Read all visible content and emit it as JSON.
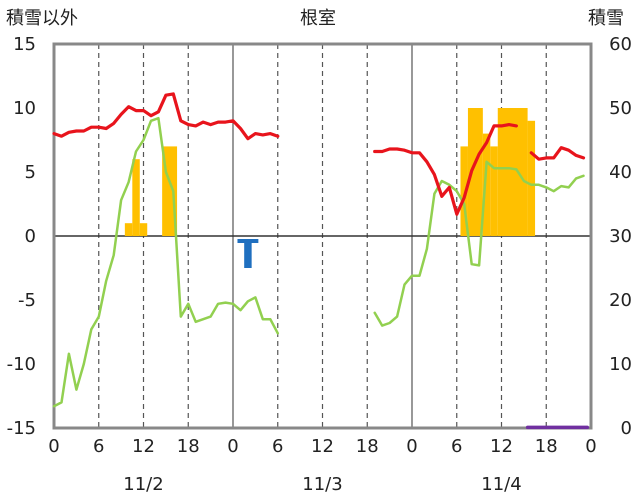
{
  "chart_data": {
    "type": "line",
    "title": "根室",
    "left_axis": {
      "label": "積雪以外",
      "ylim": [
        -15,
        15
      ],
      "ticks": [
        "15",
        "10",
        "5",
        "0",
        "-5",
        "-10",
        "-15"
      ]
    },
    "right_axis": {
      "label": "積雪",
      "ylim": [
        0,
        60
      ],
      "ticks": [
        "60",
        "50",
        "40",
        "30",
        "20",
        "10",
        "0"
      ]
    },
    "x_axis": {
      "hours_range": [
        0,
        72
      ],
      "tick_labels": [
        "0",
        "6",
        "12",
        "18",
        "0",
        "6",
        "12",
        "18",
        "0",
        "6",
        "12",
        "18",
        "0"
      ],
      "date_labels": [
        "11/2",
        "11/3",
        "11/4"
      ]
    },
    "grid": {
      "vertical_dashed_every_hours": 12,
      "solid_at_day_boundaries": true
    },
    "colors": {
      "temperature": "#e8141c",
      "dew_point": "#92d050",
      "precipitation": "#ffc000",
      "negative_bar": "#1f6fbf",
      "snow_depth": "#7030a0"
    },
    "series": [
      {
        "type": "line",
        "axis": "left",
        "segments": [
          [
            [
              0,
              8.0
            ],
            [
              1,
              7.8
            ],
            [
              2,
              8.1
            ],
            [
              3,
              8.2
            ],
            [
              4,
              8.2
            ],
            [
              5,
              8.5
            ],
            [
              6,
              8.5
            ],
            [
              7,
              8.4
            ],
            [
              8,
              8.8
            ],
            [
              9,
              9.5
            ],
            [
              10,
              10.1
            ],
            [
              11,
              9.8
            ],
            [
              12,
              9.8
            ],
            [
              13,
              9.4
            ],
            [
              14,
              9.7
            ],
            [
              15,
              11.0
            ],
            [
              16,
              11.1
            ],
            [
              17,
              9.0
            ],
            [
              18,
              8.7
            ],
            [
              19,
              8.6
            ],
            [
              20,
              8.9
            ],
            [
              21,
              8.7
            ],
            [
              22,
              8.9
            ],
            [
              23,
              8.9
            ],
            [
              24,
              9.0
            ],
            [
              25,
              8.4
            ],
            [
              26,
              7.6
            ],
            [
              27,
              8.0
            ],
            [
              28,
              7.9
            ],
            [
              29,
              8.0
            ],
            [
              30,
              7.8
            ]
          ],
          [
            [
              43,
              6.6
            ],
            [
              44,
              6.6
            ],
            [
              45,
              6.8
            ],
            [
              46,
              6.8
            ],
            [
              47,
              6.7
            ],
            [
              48,
              6.5
            ],
            [
              49,
              6.5
            ],
            [
              50,
              5.8
            ],
            [
              51,
              4.8
            ],
            [
              52,
              3.1
            ],
            [
              53,
              3.8
            ],
            [
              54,
              1.7
            ],
            [
              55,
              3.0
            ],
            [
              56,
              5.1
            ],
            [
              57,
              6.4
            ],
            [
              58,
              7.3
            ],
            [
              59,
              8.6
            ],
            [
              60,
              8.6
            ],
            [
              61,
              8.7
            ],
            [
              62,
              8.6
            ]
          ],
          [
            [
              64,
              6.5
            ],
            [
              65,
              6.0
            ],
            [
              66,
              6.1
            ],
            [
              67,
              6.1
            ],
            [
              68,
              6.9
            ],
            [
              69,
              6.7
            ],
            [
              70,
              6.3
            ],
            [
              71,
              6.1
            ]
          ]
        ]
      },
      {
        "type": "line",
        "axis": "left",
        "segments": [
          [
            [
              0,
              -13.3
            ],
            [
              1,
              -13.0
            ],
            [
              2,
              -9.2
            ],
            [
              3,
              -12.0
            ],
            [
              4,
              -10.0
            ],
            [
              5,
              -7.3
            ],
            [
              6,
              -6.3
            ],
            [
              7,
              -3.5
            ],
            [
              8,
              -1.5
            ],
            [
              9,
              2.8
            ],
            [
              10,
              4.2
            ],
            [
              11,
              6.6
            ],
            [
              12,
              7.5
            ],
            [
              13,
              9.0
            ],
            [
              14,
              9.2
            ],
            [
              15,
              5.0
            ],
            [
              16,
              3.5
            ],
            [
              17,
              -6.3
            ],
            [
              18,
              -5.3
            ],
            [
              19,
              -6.7
            ],
            [
              20,
              -6.5
            ],
            [
              21,
              -6.3
            ],
            [
              22,
              -5.3
            ],
            [
              23,
              -5.2
            ],
            [
              24,
              -5.3
            ],
            [
              25,
              -5.8
            ],
            [
              26,
              -5.1
            ],
            [
              27,
              -4.8
            ],
            [
              28,
              -6.5
            ],
            [
              29,
              -6.5
            ],
            [
              30,
              -7.6
            ]
          ],
          [
            [
              43,
              -6.0
            ],
            [
              44,
              -7.0
            ],
            [
              45,
              -6.8
            ],
            [
              46,
              -6.3
            ],
            [
              47,
              -3.8
            ],
            [
              48,
              -3.1
            ],
            [
              49,
              -3.1
            ],
            [
              50,
              -1.0
            ],
            [
              51,
              3.3
            ],
            [
              52,
              4.3
            ],
            [
              53,
              4.0
            ],
            [
              54,
              3.5
            ],
            [
              55,
              2.5
            ],
            [
              56,
              -2.2
            ],
            [
              57,
              -2.3
            ],
            [
              58,
              5.8
            ],
            [
              59,
              5.3
            ],
            [
              60,
              5.3
            ],
            [
              61,
              5.3
            ],
            [
              62,
              5.2
            ],
            [
              63,
              4.3
            ],
            [
              64,
              4.0
            ],
            [
              65,
              4.0
            ],
            [
              66,
              3.8
            ],
            [
              67,
              3.5
            ],
            [
              68,
              3.9
            ],
            [
              69,
              3.8
            ],
            [
              70,
              4.5
            ],
            [
              71,
              4.7
            ]
          ]
        ]
      },
      {
        "type": "bar",
        "axis": "left",
        "bars": [
          {
            "start": 9.5,
            "end": 10.5,
            "value": 1.0
          },
          {
            "start": 10.5,
            "end": 11.5,
            "value": 6.0
          },
          {
            "start": 11.5,
            "end": 12.5,
            "value": 1.0
          },
          {
            "start": 14.5,
            "end": 16.5,
            "value": 7.0
          },
          {
            "start": 54.5,
            "end": 55.5,
            "value": 7.0
          },
          {
            "start": 55.5,
            "end": 57.5,
            "value": 10.0
          },
          {
            "start": 57.5,
            "end": 58.5,
            "value": 8.0
          },
          {
            "start": 58.5,
            "end": 59.5,
            "value": 7.0
          },
          {
            "start": 59.5,
            "end": 63.5,
            "value": 10.0
          },
          {
            "start": 63.5,
            "end": 64.5,
            "value": 9.0
          }
        ]
      },
      {
        "type": "bar",
        "axis": "left",
        "bars": [
          {
            "start": 25.5,
            "end": 26.5,
            "top": -0.4,
            "bottom": -2.5,
            "cap": [
              24.6,
              27.4
            ]
          }
        ]
      },
      {
        "type": "line",
        "axis": "right",
        "segments": [
          [
            [
              63.5,
              0.1
            ],
            [
              71.5,
              0.1
            ]
          ]
        ]
      }
    ]
  }
}
